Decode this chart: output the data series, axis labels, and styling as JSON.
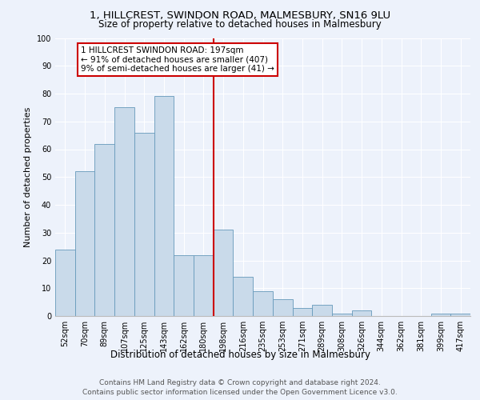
{
  "title1": "1, HILLCREST, SWINDON ROAD, MALMESBURY, SN16 9LU",
  "title2": "Size of property relative to detached houses in Malmesbury",
  "xlabel": "Distribution of detached houses by size in Malmesbury",
  "ylabel": "Number of detached properties",
  "categories": [
    "52sqm",
    "70sqm",
    "89sqm",
    "107sqm",
    "125sqm",
    "143sqm",
    "162sqm",
    "180sqm",
    "198sqm",
    "216sqm",
    "235sqm",
    "253sqm",
    "271sqm",
    "289sqm",
    "308sqm",
    "326sqm",
    "344sqm",
    "362sqm",
    "381sqm",
    "399sqm",
    "417sqm"
  ],
  "values": [
    24,
    52,
    62,
    75,
    66,
    79,
    22,
    22,
    31,
    14,
    9,
    6,
    3,
    4,
    1,
    2,
    0,
    0,
    0,
    1,
    1
  ],
  "bar_color": "#c9daea",
  "bar_edge_color": "#6699bb",
  "vline_index": 8.5,
  "property_line_label": "1 HILLCREST SWINDON ROAD: 197sqm",
  "annotation_line1": "← 91% of detached houses are smaller (407)",
  "annotation_line2": "9% of semi-detached houses are larger (41) →",
  "annotation_box_facecolor": "#ffffff",
  "annotation_box_edgecolor": "#cc0000",
  "vline_color": "#cc0000",
  "ylim": [
    0,
    100
  ],
  "yticks": [
    0,
    10,
    20,
    30,
    40,
    50,
    60,
    70,
    80,
    90,
    100
  ],
  "background_color": "#edf2fb",
  "grid_color": "#ffffff",
  "footer": "Contains HM Land Registry data © Crown copyright and database right 2024.\nContains public sector information licensed under the Open Government Licence v3.0.",
  "title1_fontsize": 9.5,
  "title2_fontsize": 8.5,
  "xlabel_fontsize": 8.5,
  "ylabel_fontsize": 8,
  "tick_fontsize": 7,
  "annotation_fontsize": 7.5,
  "footer_fontsize": 6.5
}
